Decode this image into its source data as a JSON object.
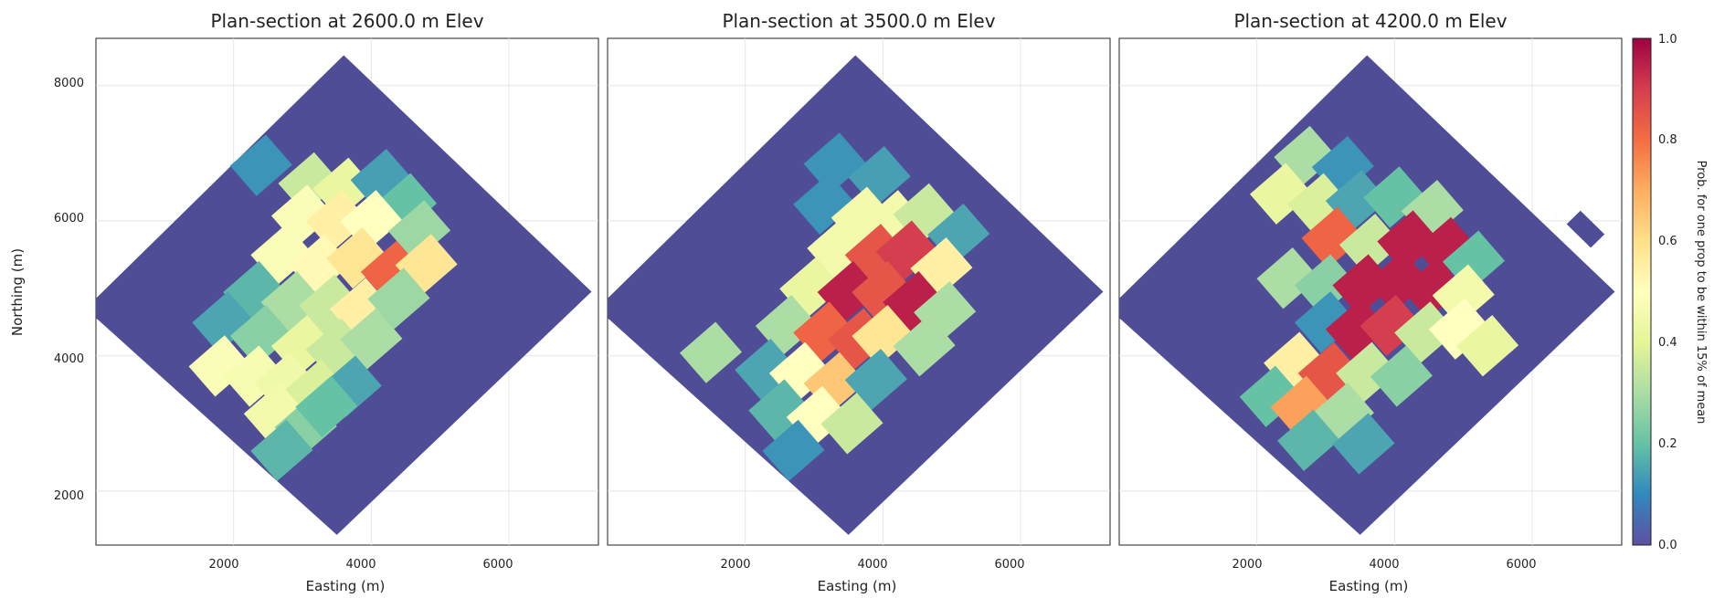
{
  "chart_data": {
    "type": "heatmap",
    "figure": {
      "colorbar_label": "Prob. for one prop to be within 15% of mean",
      "colorbar_ticks": [
        "0.0",
        "0.2",
        "0.4",
        "0.6",
        "0.8",
        "1.0"
      ],
      "colormap_stops": [
        "#5e4fa2",
        "#3288bd",
        "#66c2a5",
        "#abdda4",
        "#e6f598",
        "#ffffbf",
        "#fee08b",
        "#fdae61",
        "#f46d43",
        "#d53e4f",
        "#9e0142"
      ],
      "clim": [
        0,
        1
      ],
      "mask_color": "#4f4d96"
    },
    "panels": [
      {
        "title": "Plan-section at 2600.0 m Elev",
        "xlabel": "Easting (m)",
        "ylabel": "Northing (m)",
        "xticks": [
          "2000",
          "4000",
          "6000"
        ],
        "yticks": [
          "8000",
          "6000",
          "4000",
          "2000"
        ],
        "grid": true,
        "footprint": "rotated square (diamond)",
        "cells": [
          {
            "e": 2400,
            "n": 6820,
            "v": 0.12
          },
          {
            "e": 3100,
            "n": 6560,
            "v": 0.35
          },
          {
            "e": 3600,
            "n": 6480,
            "v": 0.42
          },
          {
            "e": 4150,
            "n": 6610,
            "v": 0.14
          },
          {
            "e": 4500,
            "n": 6250,
            "v": 0.2
          },
          {
            "e": 3000,
            "n": 6080,
            "v": 0.48
          },
          {
            "e": 3500,
            "n": 6000,
            "v": 0.55
          },
          {
            "e": 4000,
            "n": 6000,
            "v": 0.5
          },
          {
            "e": 4700,
            "n": 5850,
            "v": 0.28
          },
          {
            "e": 2700,
            "n": 5500,
            "v": 0.48
          },
          {
            "e": 3250,
            "n": 5350,
            "v": 0.52
          },
          {
            "e": 3800,
            "n": 5450,
            "v": 0.58
          },
          {
            "e": 4300,
            "n": 5250,
            "v": 0.82
          },
          {
            "e": 4800,
            "n": 5350,
            "v": 0.58
          },
          {
            "e": 2300,
            "n": 4950,
            "v": 0.18
          },
          {
            "e": 2850,
            "n": 4800,
            "v": 0.3
          },
          {
            "e": 3400,
            "n": 4750,
            "v": 0.35
          },
          {
            "e": 3850,
            "n": 4700,
            "v": 0.55
          },
          {
            "e": 4400,
            "n": 4850,
            "v": 0.28
          },
          {
            "e": 1850,
            "n": 4500,
            "v": 0.15
          },
          {
            "e": 2400,
            "n": 4300,
            "v": 0.25
          },
          {
            "e": 3000,
            "n": 4150,
            "v": 0.42
          },
          {
            "e": 3500,
            "n": 4100,
            "v": 0.35
          },
          {
            "e": 4000,
            "n": 4250,
            "v": 0.3
          },
          {
            "e": 1800,
            "n": 3850,
            "v": 0.48
          },
          {
            "e": 2300,
            "n": 3700,
            "v": 0.47
          },
          {
            "e": 2750,
            "n": 3600,
            "v": 0.44
          },
          {
            "e": 3200,
            "n": 3500,
            "v": 0.38
          },
          {
            "e": 3700,
            "n": 3550,
            "v": 0.15
          },
          {
            "e": 2600,
            "n": 3150,
            "v": 0.45
          },
          {
            "e": 3050,
            "n": 2950,
            "v": 0.25
          },
          {
            "e": 3350,
            "n": 3250,
            "v": 0.2
          },
          {
            "e": 2700,
            "n": 2600,
            "v": 0.18
          }
        ]
      },
      {
        "title": "Plan-section at 3500.0 m Elev",
        "xlabel": "Easting (m)",
        "xticks": [
          "2000",
          "4000",
          "6000"
        ],
        "grid": true,
        "footprint": "rotated square (diamond)",
        "cells": [
          {
            "e": 3300,
            "n": 6850,
            "v": 0.12
          },
          {
            "e": 3950,
            "n": 6650,
            "v": 0.14
          },
          {
            "e": 3150,
            "n": 6250,
            "v": 0.12
          },
          {
            "e": 3700,
            "n": 6050,
            "v": 0.45
          },
          {
            "e": 4150,
            "n": 6000,
            "v": 0.45
          },
          {
            "e": 4600,
            "n": 6100,
            "v": 0.35
          },
          {
            "e": 5100,
            "n": 5800,
            "v": 0.15
          },
          {
            "e": 3350,
            "n": 5600,
            "v": 0.45
          },
          {
            "e": 3900,
            "n": 5500,
            "v": 0.85
          },
          {
            "e": 4350,
            "n": 5550,
            "v": 0.9
          },
          {
            "e": 4850,
            "n": 5300,
            "v": 0.55
          },
          {
            "e": 2950,
            "n": 5000,
            "v": 0.42
          },
          {
            "e": 3500,
            "n": 4950,
            "v": 0.95
          },
          {
            "e": 4000,
            "n": 4950,
            "v": 0.85
          },
          {
            "e": 4450,
            "n": 4800,
            "v": 0.95
          },
          {
            "e": 4900,
            "n": 4650,
            "v": 0.3
          },
          {
            "e": 2600,
            "n": 4450,
            "v": 0.3
          },
          {
            "e": 3150,
            "n": 4350,
            "v": 0.82
          },
          {
            "e": 3650,
            "n": 4250,
            "v": 0.85
          },
          {
            "e": 4000,
            "n": 4300,
            "v": 0.58
          },
          {
            "e": 4600,
            "n": 4150,
            "v": 0.3
          },
          {
            "e": 1500,
            "n": 4050,
            "v": 0.3
          },
          {
            "e": 2300,
            "n": 3800,
            "v": 0.15
          },
          {
            "e": 2800,
            "n": 3750,
            "v": 0.5
          },
          {
            "e": 3300,
            "n": 3600,
            "v": 0.65
          },
          {
            "e": 3900,
            "n": 3650,
            "v": 0.15
          },
          {
            "e": 2500,
            "n": 3200,
            "v": 0.18
          },
          {
            "e": 3050,
            "n": 3100,
            "v": 0.5
          },
          {
            "e": 3550,
            "n": 3000,
            "v": 0.35
          },
          {
            "e": 2700,
            "n": 2600,
            "v": 0.12
          }
        ]
      },
      {
        "title": "Plan-section at 4200.0 m Elev",
        "xlabel": "Easting (m)",
        "xticks": [
          "2000",
          "4000",
          "6000"
        ],
        "grid": true,
        "footprint": "rotated square (diamond) with notched extension",
        "cells": [
          {
            "e": 2700,
            "n": 6950,
            "v": 0.3
          },
          {
            "e": 3250,
            "n": 6800,
            "v": 0.12
          },
          {
            "e": 2350,
            "n": 6400,
            "v": 0.42
          },
          {
            "e": 2900,
            "n": 6250,
            "v": 0.38
          },
          {
            "e": 3450,
            "n": 6300,
            "v": 0.15
          },
          {
            "e": 4000,
            "n": 6350,
            "v": 0.2
          },
          {
            "e": 4550,
            "n": 6150,
            "v": 0.3
          },
          {
            "e": 3100,
            "n": 5750,
            "v": 0.82
          },
          {
            "e": 3650,
            "n": 5650,
            "v": 0.35
          },
          {
            "e": 4200,
            "n": 5700,
            "v": 0.95
          },
          {
            "e": 4750,
            "n": 5600,
            "v": 0.95
          },
          {
            "e": 5150,
            "n": 5400,
            "v": 0.2
          },
          {
            "e": 2450,
            "n": 5150,
            "v": 0.3
          },
          {
            "e": 3000,
            "n": 5050,
            "v": 0.25
          },
          {
            "e": 3550,
            "n": 5050,
            "v": 0.95
          },
          {
            "e": 4050,
            "n": 5100,
            "v": 0.95
          },
          {
            "e": 4550,
            "n": 5000,
            "v": 0.95
          },
          {
            "e": 5000,
            "n": 4900,
            "v": 0.45
          },
          {
            "e": 3000,
            "n": 4500,
            "v": 0.12
          },
          {
            "e": 3450,
            "n": 4400,
            "v": 0.95
          },
          {
            "e": 3950,
            "n": 4450,
            "v": 0.9
          },
          {
            "e": 4450,
            "n": 4350,
            "v": 0.35
          },
          {
            "e": 4950,
            "n": 4400,
            "v": 0.5
          },
          {
            "e": 5350,
            "n": 4150,
            "v": 0.42
          },
          {
            "e": 2550,
            "n": 3900,
            "v": 0.55
          },
          {
            "e": 3050,
            "n": 3750,
            "v": 0.85
          },
          {
            "e": 3600,
            "n": 3750,
            "v": 0.35
          },
          {
            "e": 4100,
            "n": 3700,
            "v": 0.25
          },
          {
            "e": 2200,
            "n": 3400,
            "v": 0.2
          },
          {
            "e": 2650,
            "n": 3250,
            "v": 0.72
          },
          {
            "e": 3250,
            "n": 3150,
            "v": 0.3
          },
          {
            "e": 2750,
            "n": 2750,
            "v": 0.18
          },
          {
            "e": 3550,
            "n": 2700,
            "v": 0.15
          }
        ]
      }
    ]
  }
}
